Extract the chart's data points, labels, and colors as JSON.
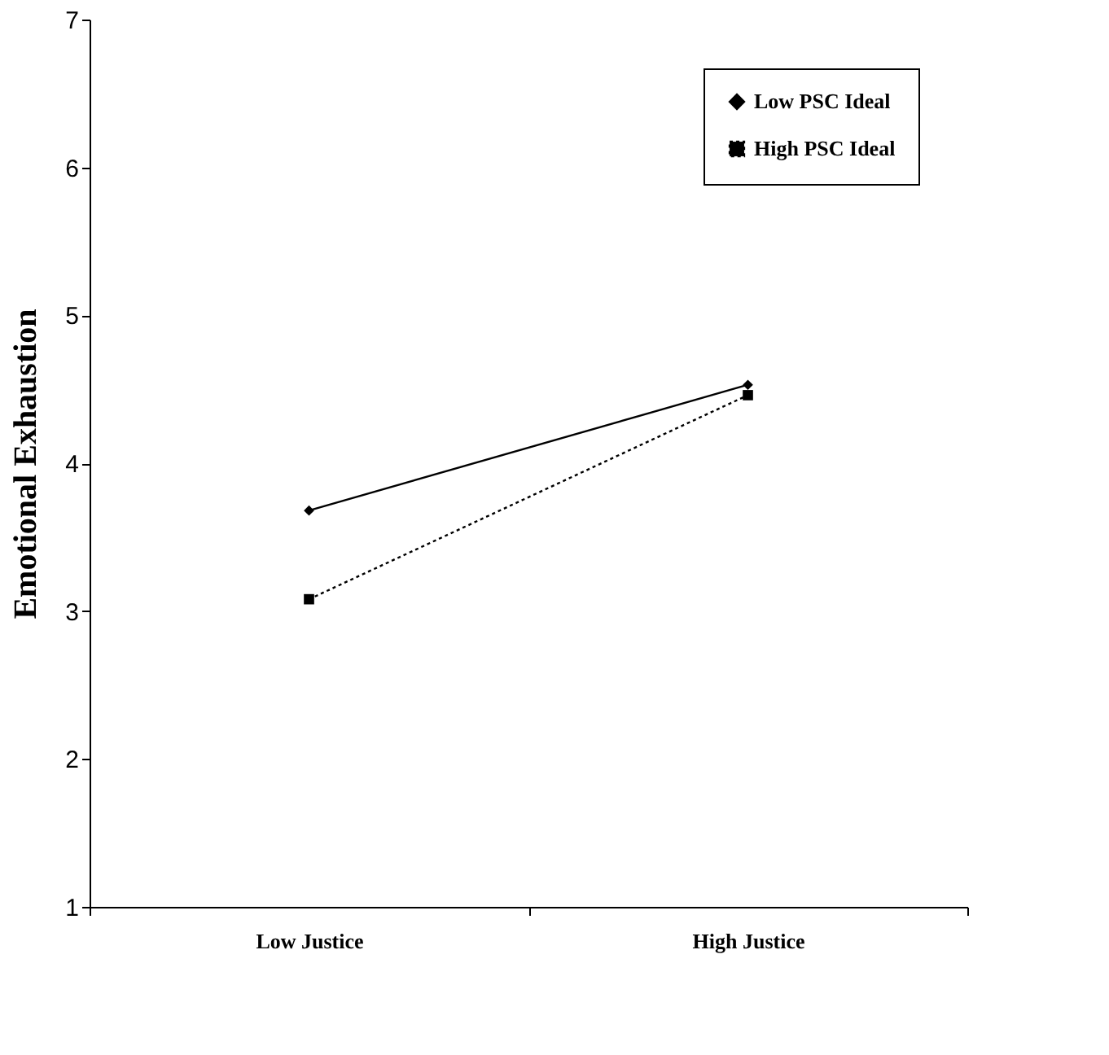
{
  "chart_data": {
    "type": "line",
    "ylabel": "Emotional Exhaustion",
    "categories": [
      "Low Justice",
      "High Justice"
    ],
    "series": [
      {
        "name": "Low PSC Ideal",
        "color": "#000000",
        "marker": "diamond",
        "line_style": "solid",
        "values": [
          3.68,
          4.53
        ]
      },
      {
        "name": "High PSC Ideal",
        "color": "#000000",
        "marker": "square",
        "line_style": "dotted",
        "values": [
          3.08,
          4.46
        ]
      }
    ],
    "ylim": [
      1,
      7
    ],
    "yticks": [
      1,
      2,
      3,
      4,
      5,
      6,
      7
    ],
    "grid": false,
    "legend": "top right"
  }
}
